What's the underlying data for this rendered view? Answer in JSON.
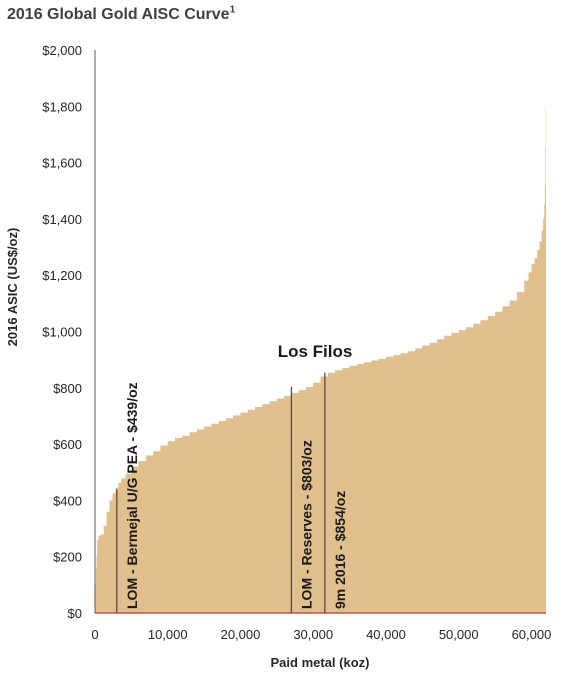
{
  "chart_data": {
    "type": "area",
    "title": "2016 Global Gold AISC Curve",
    "title_superscript": "1",
    "xlabel": "Paid metal (koz)",
    "ylabel": "2016 ASIC (US$/oz)",
    "xlim": [
      0,
      62000
    ],
    "ylim": [
      0,
      2000
    ],
    "x_ticks": [
      0,
      10000,
      20000,
      30000,
      40000,
      50000,
      60000
    ],
    "x_tick_labels": [
      "0",
      "10,000",
      "20,000",
      "30,000",
      "40,000",
      "50,000",
      "60,000"
    ],
    "y_ticks": [
      0,
      200,
      400,
      600,
      800,
      1000,
      1200,
      1400,
      1600,
      1800,
      2000
    ],
    "y_tick_labels": [
      "$0",
      "$200",
      "$400",
      "$600",
      "$800",
      "$1,000",
      "$1,200",
      "$1,400",
      "$1,600",
      "$1,800",
      "$2,000"
    ],
    "grid": false,
    "fill_color": "#e2c08d",
    "baseline_color": "#c0504d",
    "series": [
      {
        "x": [
          0,
          50,
          120,
          200,
          300,
          500,
          800,
          1200,
          1600,
          2000,
          2400,
          2800,
          3200,
          3600,
          4200,
          5000,
          6000,
          7000,
          8000,
          9000,
          10000,
          11000,
          12000,
          13000,
          14000,
          15000,
          16000,
          17000,
          18000,
          19000,
          20000,
          21000,
          22000,
          23000,
          24000,
          25000,
          26000,
          27000,
          28000,
          29000,
          30000,
          31000,
          32000,
          33000,
          34000,
          35000,
          36000,
          37000,
          38000,
          39000,
          40000,
          41000,
          42000,
          43000,
          44000,
          45000,
          46000,
          47000,
          48000,
          49000,
          50000,
          51000,
          52000,
          53000,
          54000,
          55000,
          56000,
          57000,
          58000,
          59000,
          59600,
          60000,
          60400,
          60800,
          61100,
          61400,
          61600,
          61750,
          61850,
          61920,
          61960,
          62000
        ],
        "values": [
          0,
          100,
          160,
          200,
          260,
          275,
          280,
          310,
          360,
          400,
          425,
          445,
          462,
          478,
          495,
          520,
          540,
          560,
          575,
          595,
          610,
          622,
          630,
          642,
          652,
          662,
          672,
          682,
          692,
          702,
          712,
          722,
          732,
          742,
          752,
          762,
          772,
          782,
          792,
          803,
          818,
          840,
          854,
          862,
          870,
          878,
          885,
          891,
          897,
          903,
          910,
          916,
          923,
          930,
          940,
          950,
          960,
          972,
          985,
          995,
          1005,
          1015,
          1028,
          1040,
          1055,
          1070,
          1090,
          1110,
          1140,
          1180,
          1210,
          1240,
          1260,
          1290,
          1320,
          1360,
          1400,
          1450,
          1520,
          1650,
          1800,
          2000
        ]
      }
    ],
    "annotations": [
      {
        "text": "LOM - Bermejal U/G PEA - $439/oz",
        "x": 3000,
        "y": 439
      },
      {
        "text": "LOM - Reserves - $803/oz",
        "x": 27000,
        "y": 803
      },
      {
        "text": "9m 2016 - $854/oz",
        "x": 31600,
        "y": 854
      }
    ],
    "callout": "Los Filos"
  }
}
